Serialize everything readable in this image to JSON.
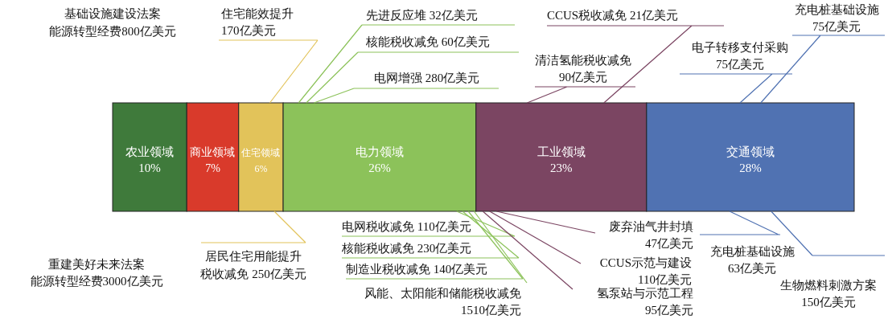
{
  "chart_data": {
    "type": "bar",
    "orientation": "horizontal",
    "stacked": true,
    "categories": [
      null
    ],
    "series": [
      {
        "name": "农业领域",
        "color": "#3f7a3b",
        "values": [
          10
        ],
        "value_labels": [
          "10%"
        ]
      },
      {
        "name": "商业领域",
        "color": "#d93a2b",
        "values": [
          7
        ],
        "value_labels": [
          "7%"
        ]
      },
      {
        "name": "住宅领域",
        "color": "#e2c35a",
        "values": [
          6
        ],
        "value_labels": [
          "6%"
        ]
      },
      {
        "name": "电力领域",
        "color": "#8cc25a",
        "values": [
          26
        ],
        "value_labels": [
          "26%"
        ]
      },
      {
        "name": "工业领域",
        "color": "#7b4562",
        "values": [
          23
        ],
        "value_labels": [
          "23%"
        ]
      },
      {
        "name": "交通领域",
        "color": "#5072b2",
        "values": [
          28
        ],
        "value_labels": [
          "28%"
        ]
      }
    ],
    "annotations": [
      "基础设施建设法案",
      "能源转型经费800亿美元",
      "住宅能效提升\n170亿美元",
      "先进反应堆 32亿美元",
      "核能税收减免 60亿美元",
      "电网增强 280亿美元",
      "CCUS税收减免 21亿美元",
      "清洁氢能税收减免\n90亿美元",
      "充电桩基础设施\n75亿美元",
      "电子转移支付采购\n75亿美元",
      "重建美好未来法案",
      "能源转型经费3000亿美元",
      "居民住宅用能提升",
      "税收减免 250亿美元",
      "电网税收减免 110亿美元",
      "核能税收减免 230亿美元",
      "制造业税收减免 140亿美元",
      "风能、太阳能和储能税收减免\n1510亿美元",
      "废弃油气井封填\n47亿美元",
      "CCUS示范与建设\n110亿美元",
      "氢泵站与示范工程\n95亿美元",
      "充电桩基础设施\n63亿美元",
      "生物燃料刺激方案\n150亿美元"
    ]
  }
}
